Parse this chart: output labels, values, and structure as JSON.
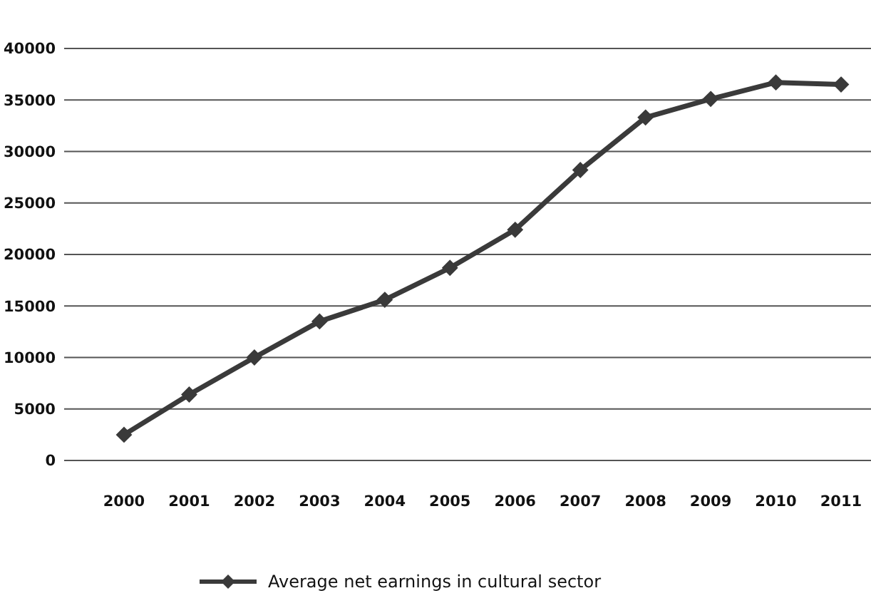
{
  "chart_data": {
    "type": "line",
    "categories": [
      "2000",
      "2001",
      "2002",
      "2003",
      "2004",
      "2005",
      "2006",
      "2007",
      "2008",
      "2009",
      "2010",
      "2011"
    ],
    "series": [
      {
        "name": "Average net earnings in cultural sector",
        "color": "#3a3a3a",
        "values": [
          2500,
          6400,
          10000,
          13500,
          15600,
          18700,
          22400,
          28200,
          33300,
          35100,
          36700,
          36500
        ]
      }
    ],
    "ylim": [
      0,
      40000
    ],
    "yticks": [
      0,
      5000,
      10000,
      15000,
      20000,
      25000,
      30000,
      35000,
      40000
    ],
    "grid": "y",
    "legend": "bottom left",
    "marker": "diamond",
    "line_style": "solid"
  }
}
